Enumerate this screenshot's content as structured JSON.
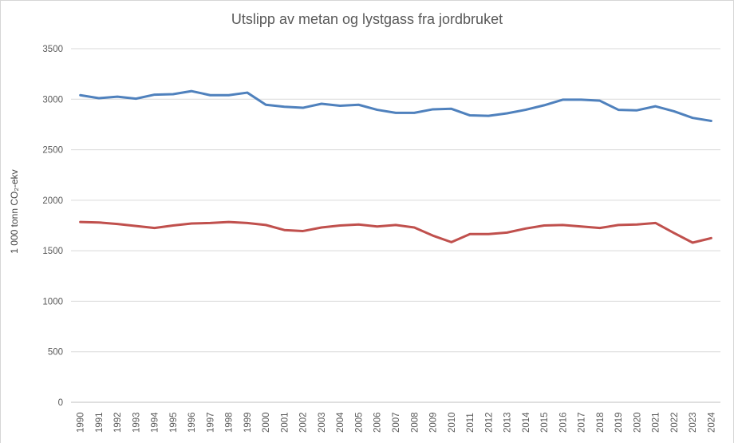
{
  "chart_data": {
    "type": "line",
    "title": "Utslipp av metan og lystgass fra jordbruket",
    "xlabel": "",
    "ylabel": "1 000 tonn CO₂-ekv",
    "ylim": [
      0,
      3500
    ],
    "yticks": [
      0,
      500,
      1000,
      1500,
      2000,
      2500,
      3000,
      3500
    ],
    "grid": true,
    "legend": "none",
    "categories": [
      "1990",
      "1991",
      "1992",
      "1993",
      "1994",
      "1995",
      "1996",
      "1997",
      "1998",
      "1999",
      "2000",
      "2001",
      "2002",
      "2003",
      "2004",
      "2005",
      "2006",
      "2007",
      "2008",
      "2009",
      "2010",
      "2011",
      "2012",
      "2013",
      "2014",
      "2015",
      "2016",
      "2017",
      "2018",
      "2019",
      "2020",
      "2021",
      "2022",
      "2023",
      "2024"
    ],
    "series": [
      {
        "name": "blue-line",
        "color": "#4F81BD",
        "values": [
          3040,
          3010,
          3025,
          3005,
          3045,
          3050,
          3080,
          3040,
          3040,
          3065,
          2945,
          2925,
          2915,
          2955,
          2935,
          2945,
          2895,
          2865,
          2865,
          2900,
          2905,
          2840,
          2835,
          2860,
          2895,
          2940,
          2995,
          2995,
          2985,
          2895,
          2890,
          2930,
          2880,
          2815,
          2785
        ]
      },
      {
        "name": "red-line",
        "color": "#C0504D",
        "values": [
          1785,
          1780,
          1765,
          1745,
          1725,
          1750,
          1770,
          1775,
          1785,
          1775,
          1755,
          1705,
          1695,
          1730,
          1750,
          1760,
          1740,
          1755,
          1730,
          1650,
          1585,
          1665,
          1665,
          1680,
          1720,
          1750,
          1755,
          1740,
          1725,
          1755,
          1760,
          1775,
          1675,
          1580,
          1625
        ]
      }
    ],
    "colors": {
      "title_text": "#595959",
      "axis_text": "#595959",
      "gridline": "#d9d9d9",
      "axis_line": "#bfbfbf"
    }
  }
}
